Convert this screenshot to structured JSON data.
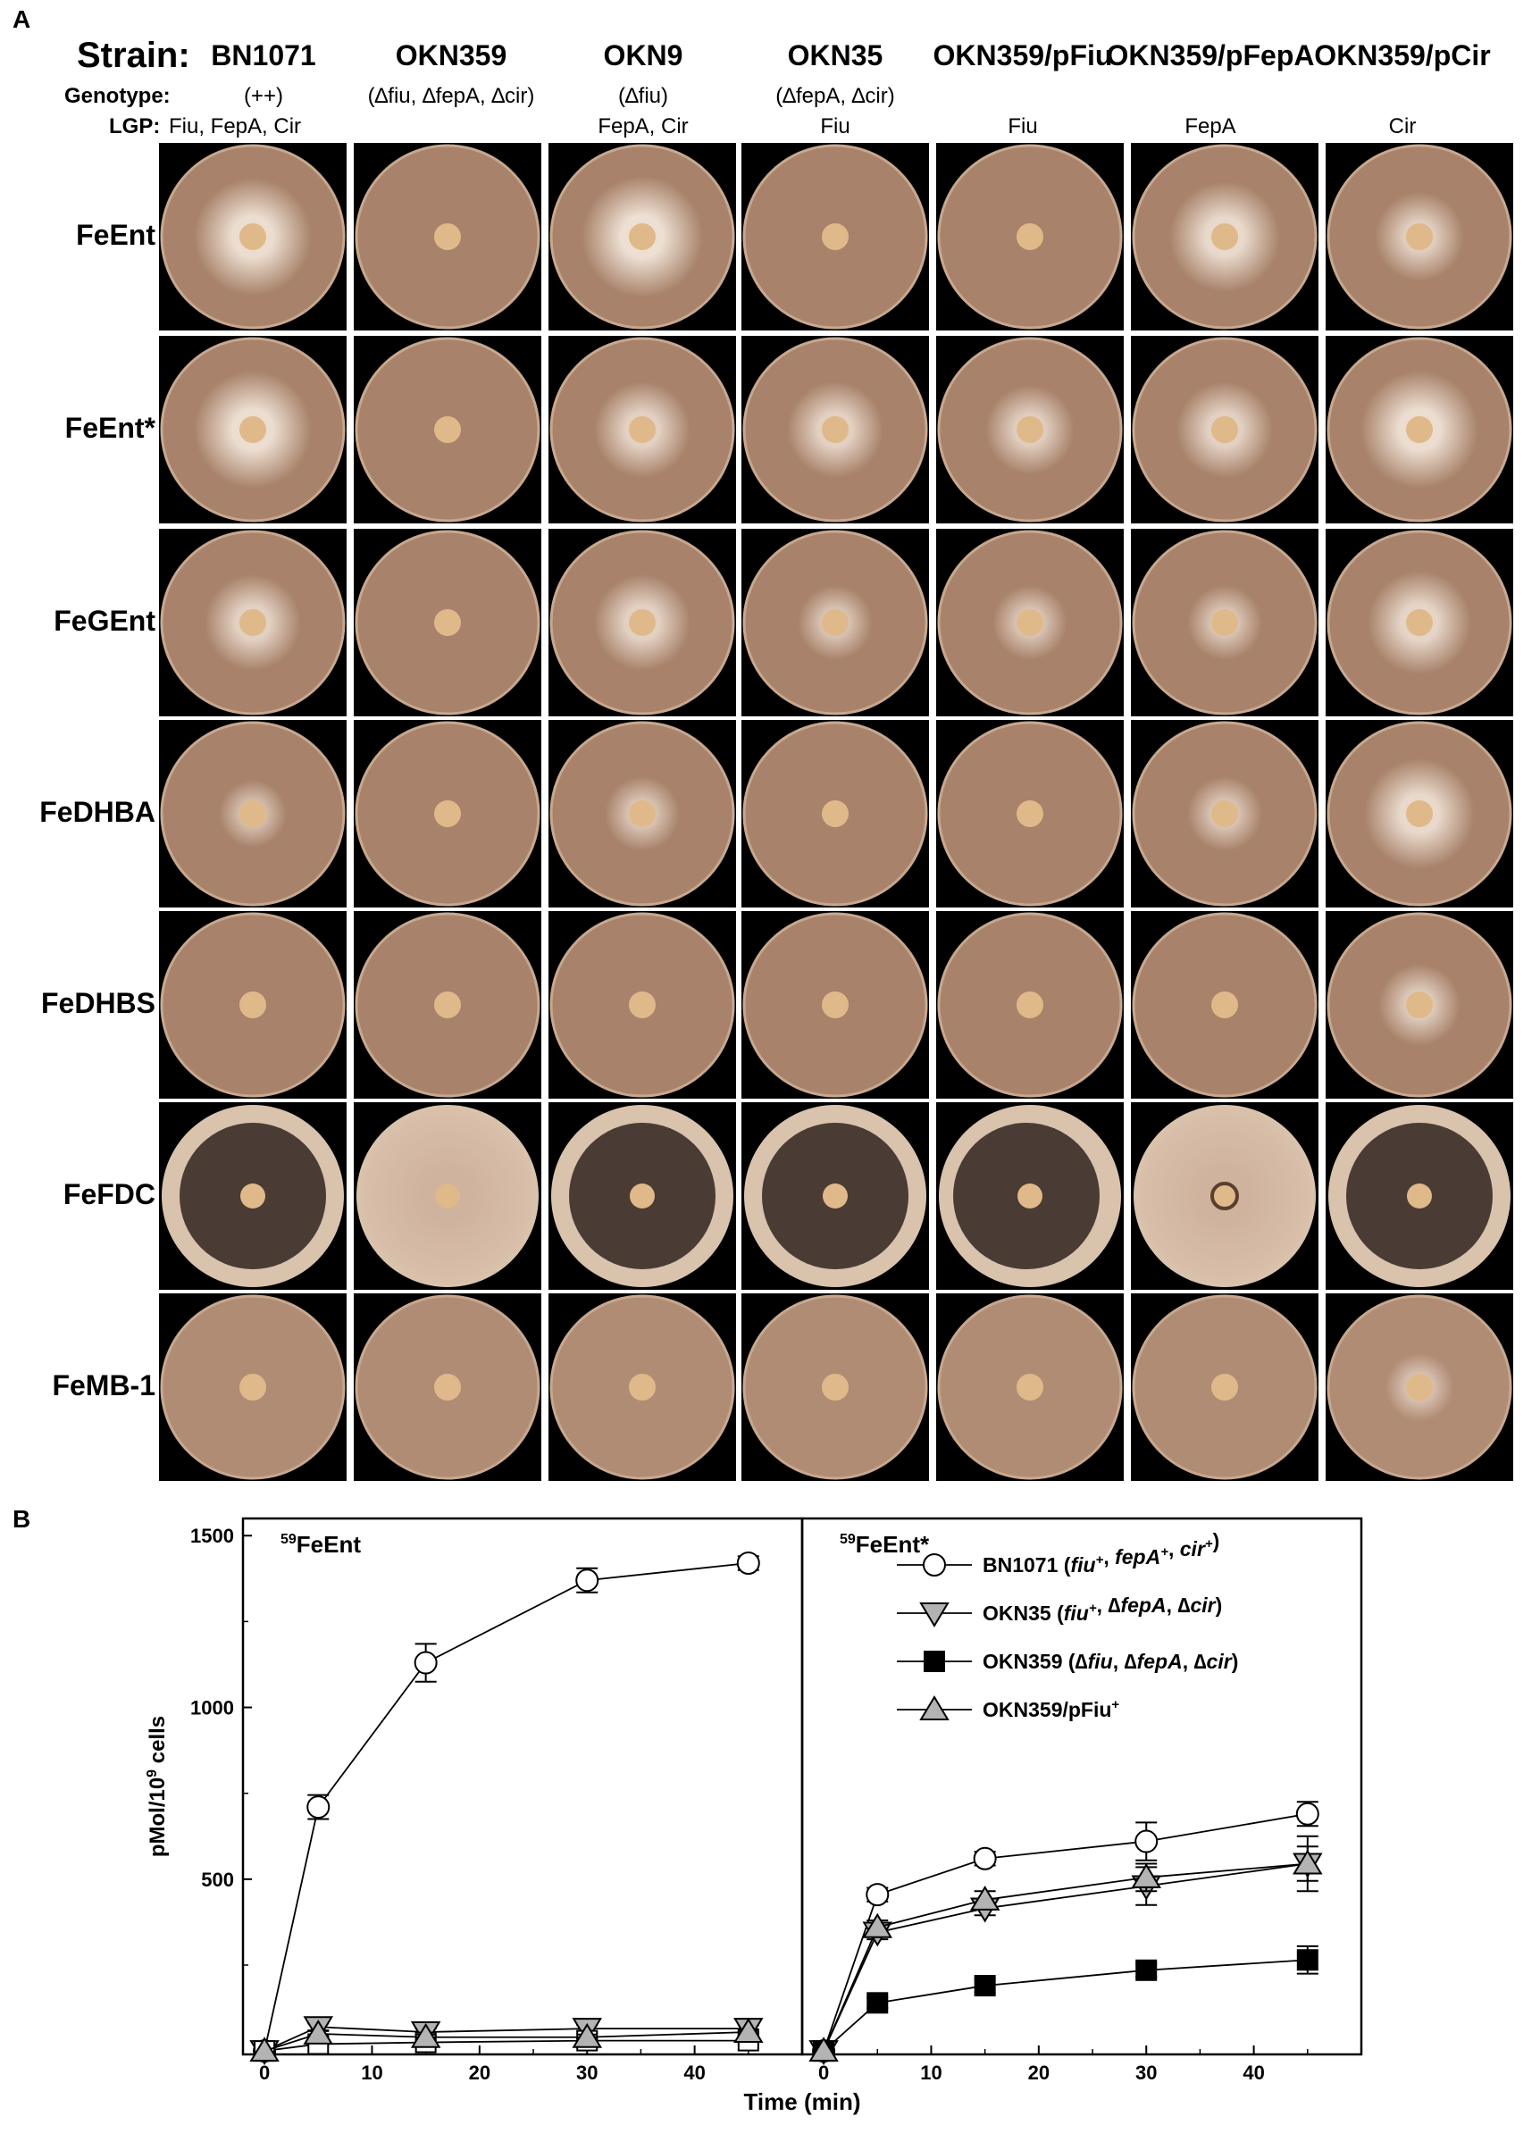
{
  "panelA": {
    "label": "A",
    "strain_label": "Strain:",
    "genotype_label": "Genotype:",
    "lgp_label": "LGP:",
    "strains": [
      {
        "name": "BN1071",
        "genotype": "(++)",
        "lgp": "Fiu, FepA, Cir"
      },
      {
        "name": "OKN359",
        "genotype": "(∆fiu, ∆fepA, ∆cir)",
        "lgp": ""
      },
      {
        "name": "OKN9",
        "genotype": "(∆fiu)",
        "lgp": "FepA, Cir"
      },
      {
        "name": "OKN35",
        "genotype": "(∆fepA, ∆cir)",
        "lgp": "Fiu"
      },
      {
        "name": "OKN359/pFiu",
        "genotype": "",
        "lgp": "Fiu"
      },
      {
        "name": "OKN359/pFepA",
        "genotype": "",
        "lgp": "FepA"
      },
      {
        "name": "OKN359/pCir",
        "genotype": "",
        "lgp": "Cir"
      }
    ],
    "rows": [
      "FeEnt",
      "FeEnt*",
      "FeGEnt",
      "FeDHBA",
      "FeDHBS",
      "FeFDC",
      "FeMB-1"
    ],
    "colors": {
      "plate": "#a8826a",
      "plate_rim": "#d9c3ad",
      "disc": "#e0b98a",
      "clear_zone": "#f2e6da",
      "dark_zone": "#4a3b35",
      "background": "#000000"
    }
  },
  "panelB": {
    "label": "B",
    "chart_data": [
      {
        "type": "line",
        "annotation": "59FeEnt",
        "annotation_sup": "59",
        "annotation_main": "FeEnt",
        "xlabel": "Time (min)",
        "ylabel": "pMol/10⁹ cells",
        "ylabel_main": "pMol/10",
        "ylabel_sup": "9",
        "ylabel_tail": " cells",
        "xlim": [
          -2,
          50
        ],
        "ylim": [
          -10,
          1550
        ],
        "xticks": [
          0,
          10,
          20,
          30,
          40
        ],
        "yticks": [
          500,
          1000,
          1500
        ],
        "series": [
          {
            "name": "BN1071",
            "marker": "open-circle",
            "x": [
              0,
              5,
              15,
              30,
              45
            ],
            "y": [
              0,
              710,
              1130,
              1370,
              1420
            ],
            "err": [
              0,
              35,
              55,
              35,
              20
            ]
          },
          {
            "name": "OKN35",
            "marker": "gray-down-triangle",
            "x": [
              0,
              5,
              15,
              30,
              45
            ],
            "y": [
              0,
              70,
              55,
              65,
              65
            ],
            "err": [
              0,
              10,
              10,
              10,
              10
            ]
          },
          {
            "name": "OKN359",
            "marker": "open-square",
            "x": [
              0,
              5,
              15,
              30,
              45
            ],
            "y": [
              0,
              20,
              25,
              30,
              30
            ],
            "err": [
              0,
              5,
              5,
              5,
              5
            ]
          },
          {
            "name": "OKN359/pFiu+",
            "marker": "gray-up-triangle",
            "x": [
              0,
              5,
              15,
              30,
              45
            ],
            "y": [
              0,
              50,
              40,
              40,
              55
            ],
            "err": [
              0,
              8,
              8,
              8,
              8
            ]
          }
        ]
      },
      {
        "type": "line",
        "annotation": "59FeEnt*",
        "annotation_sup": "59",
        "annotation_main": "FeEnt*",
        "xlabel": "Time (min)",
        "xlim": [
          -2,
          50
        ],
        "ylim": [
          -10,
          1550
        ],
        "xticks": [
          0,
          10,
          20,
          30,
          40
        ],
        "series": [
          {
            "name": "BN1071",
            "marker": "open-circle",
            "x": [
              0,
              5,
              15,
              30,
              45
            ],
            "y": [
              0,
              455,
              560,
              610,
              690
            ],
            "err": [
              0,
              20,
              20,
              55,
              35
            ]
          },
          {
            "name": "OKN35",
            "marker": "gray-down-triangle",
            "x": [
              0,
              5,
              15,
              30,
              45
            ],
            "y": [
              0,
              345,
              415,
              480,
              545
            ],
            "err": [
              0,
              20,
              20,
              55,
              50
            ]
          },
          {
            "name": "OKN359",
            "marker": "filled-square",
            "x": [
              0,
              5,
              15,
              30,
              45
            ],
            "y": [
              0,
              140,
              190,
              235,
              265
            ],
            "err": [
              0,
              15,
              20,
              20,
              40
            ]
          },
          {
            "name": "OKN359/pFiu+",
            "marker": "gray-up-triangle",
            "x": [
              0,
              5,
              15,
              30,
              45
            ],
            "y": [
              0,
              360,
              440,
              505,
              545
            ],
            "err": [
              0,
              20,
              25,
              40,
              80
            ]
          }
        ],
        "legend": [
          {
            "marker": "open-circle",
            "parts": [
              {
                "t": "BN1071 (",
                "i": false
              },
              {
                "t": "fiu",
                "i": true
              },
              {
                "t": "+",
                "i": true,
                "sup": true
              },
              {
                "t": ", ",
                "i": false
              },
              {
                "t": "fepA",
                "i": true
              },
              {
                "t": "+",
                "i": true,
                "sup": true
              },
              {
                "t": ", ",
                "i": false
              },
              {
                "t": "cir",
                "i": true
              },
              {
                "t": "+",
                "i": true,
                "sup": true
              },
              {
                "t": ")",
                "i": false
              }
            ]
          },
          {
            "marker": "gray-down-triangle",
            "parts": [
              {
                "t": "OKN35 (",
                "i": false
              },
              {
                "t": "fiu",
                "i": true
              },
              {
                "t": "+",
                "i": true,
                "sup": true
              },
              {
                "t": ", ",
                "i": false
              },
              {
                "t": "∆fepA",
                "i": true
              },
              {
                "t": ", ",
                "i": false
              },
              {
                "t": "∆cir",
                "i": true
              },
              {
                "t": ")",
                "i": false
              }
            ]
          },
          {
            "marker": "filled-square",
            "parts": [
              {
                "t": "OKN359 (",
                "i": false
              },
              {
                "t": "∆fiu",
                "i": true
              },
              {
                "t": ", ",
                "i": false
              },
              {
                "t": "∆fepA",
                "i": true
              },
              {
                "t": ", ",
                "i": false
              },
              {
                "t": "∆cir",
                "i": true
              },
              {
                "t": ")",
                "i": false
              }
            ]
          },
          {
            "marker": "gray-up-triangle",
            "parts": [
              {
                "t": "OKN359/pFiu",
                "i": false
              },
              {
                "t": "+",
                "i": false,
                "sup": true
              }
            ]
          }
        ]
      }
    ]
  }
}
